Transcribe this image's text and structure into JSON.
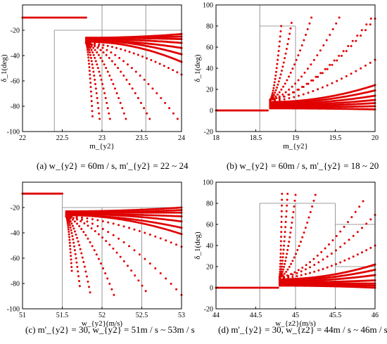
{
  "captions": [
    "(a)  w_{y2} = 60m / s, m'_{y2} = 22 ~ 24",
    "(b)  w_{y2} = 60m / s, m'_{y2} = 18 ~ 20",
    "(c)  m'_{y2} = 30, w_{y2} = 51m / s ~ 53m / s",
    "(d)  m'_{y2} = 30, w_{z2} = 44m / s ~ 46m / s"
  ],
  "colors": {
    "marker": "#e00000",
    "axis": "#000000",
    "grid": "#7f7f7f"
  },
  "chart_data": [
    {
      "type": "scatter",
      "xlabel": "m_{y2}",
      "ylabel": "δ_1(deg)",
      "xlim": [
        22,
        24
      ],
      "ylim": [
        -100,
        0
      ],
      "xticks": [
        22,
        22.5,
        23,
        23.5,
        24
      ],
      "yticks": [
        -100,
        -80,
        -60,
        -40,
        -20
      ],
      "grid": false,
      "guide_lines": [
        {
          "x": [
            22.4,
            24
          ],
          "y": [
            -20,
            -20
          ]
        },
        {
          "x": [
            22.4,
            22.4
          ],
          "y": [
            -100,
            -20
          ]
        },
        {
          "x": [
            23,
            23
          ],
          "y": [
            -100,
            0
          ]
        },
        {
          "x": [
            23.55,
            23.55
          ],
          "y": [
            -100,
            0
          ]
        }
      ],
      "flat_segment": {
        "x0": 22,
        "x1": 22.8,
        "y": -10
      },
      "jump_x": 22.8,
      "curves": [
        {
          "y_start": -26,
          "y_end": -23
        },
        {
          "y_start": -26,
          "y_end": -25
        },
        {
          "y_start": -26,
          "y_end": -27
        },
        {
          "y_start": -27,
          "y_end": -30
        },
        {
          "y_start": -28,
          "y_end": -34
        },
        {
          "y_start": -28,
          "y_end": -39
        },
        {
          "y_start": -29,
          "y_end": -45
        },
        {
          "y_start": -30,
          "y_end": -55,
          "x_end": 24
        },
        {
          "y_start": -30,
          "y_end": -90,
          "x_end": 23.95
        },
        {
          "y_start": -30,
          "y_end": -90,
          "x_end": 23.6
        },
        {
          "y_start": -30,
          "y_end": -90,
          "x_end": 23.3
        },
        {
          "y_start": -30,
          "y_end": -90,
          "x_end": 23.1
        },
        {
          "y_start": -30,
          "y_end": -90,
          "x_end": 22.97
        },
        {
          "y_start": -30,
          "y_end": -88,
          "x_end": 22.88
        }
      ]
    },
    {
      "type": "scatter",
      "xlabel": "m_{y2}",
      "ylabel": "δ_1(deg)",
      "xlim": [
        18,
        20
      ],
      "ylim": [
        -20,
        100
      ],
      "xticks": [
        18,
        18.5,
        19,
        19.5,
        20
      ],
      "yticks": [
        -20,
        0,
        20,
        40,
        60,
        80,
        100
      ],
      "grid": false,
      "guide_lines": [
        {
          "x": [
            18.55,
            18.55
          ],
          "y": [
            -20,
            100
          ]
        },
        {
          "x": [
            19,
            19
          ],
          "y": [
            -20,
            80
          ]
        },
        {
          "x": [
            18.55,
            19
          ],
          "y": [
            80,
            80
          ]
        }
      ],
      "flat_segment": {
        "x0": 18,
        "x1": 18.65,
        "y": 0
      },
      "jump_x": 18.68,
      "curves": [
        {
          "y_start": 2,
          "y_end": 1
        },
        {
          "y_start": 3,
          "y_end": 4
        },
        {
          "y_start": 4,
          "y_end": 7
        },
        {
          "y_start": 5,
          "y_end": 10
        },
        {
          "y_start": 6,
          "y_end": 14
        },
        {
          "y_start": 7,
          "y_end": 19
        },
        {
          "y_start": 8,
          "y_end": 24
        },
        {
          "y_start": 9,
          "y_end": 48,
          "x_end": 20
        },
        {
          "y_start": 10,
          "y_end": 87,
          "x_end": 20
        },
        {
          "y_start": 10,
          "y_end": 87,
          "x_end": 19.95
        },
        {
          "y_start": 10,
          "y_end": 88,
          "x_end": 19.55
        },
        {
          "y_start": 10,
          "y_end": 88,
          "x_end": 19.2
        },
        {
          "y_start": 10,
          "y_end": 83,
          "x_end": 18.95
        },
        {
          "y_start": 10,
          "y_end": 80,
          "x_end": 18.82
        }
      ]
    },
    {
      "type": "scatter",
      "xlabel": "w_{y2}(m/s)",
      "ylabel": "",
      "xlim": [
        51,
        53
      ],
      "ylim": [
        -100,
        0
      ],
      "xticks": [
        51,
        51.5,
        52,
        52.5,
        53
      ],
      "yticks": [
        -100,
        -80,
        -60,
        -40,
        -20
      ],
      "grid": false,
      "guide_lines": [
        {
          "x": [
            51.5,
            51.5
          ],
          "y": [
            -100,
            -10
          ]
        },
        {
          "x": [
            52,
            52
          ],
          "y": [
            -100,
            -20
          ]
        },
        {
          "x": [
            52.5,
            52.5
          ],
          "y": [
            -100,
            -20
          ]
        },
        {
          "x": [
            51.5,
            53
          ],
          "y": [
            -20,
            -20
          ]
        }
      ],
      "flat_segment": {
        "x0": 51,
        "x1": 51.5,
        "y": -9
      },
      "jump_x": 51.55,
      "curves": [
        {
          "y_start": -23,
          "y_end": -20
        },
        {
          "y_start": -24,
          "y_end": -22
        },
        {
          "y_start": -24,
          "y_end": -24
        },
        {
          "y_start": -25,
          "y_end": -27
        },
        {
          "y_start": -25,
          "y_end": -31
        },
        {
          "y_start": -26,
          "y_end": -36
        },
        {
          "y_start": -26,
          "y_end": -41
        },
        {
          "y_start": -27,
          "y_end": -51,
          "x_end": 53
        },
        {
          "y_start": -27,
          "y_end": -89,
          "x_end": 53
        },
        {
          "y_start": -27,
          "y_end": -86,
          "x_end": 52.55
        },
        {
          "y_start": -27,
          "y_end": -89,
          "x_end": 52.15
        },
        {
          "y_start": -27,
          "y_end": -87,
          "x_end": 51.85
        },
        {
          "y_start": -27,
          "y_end": -82,
          "x_end": 51.72
        },
        {
          "y_start": -27,
          "y_end": -70,
          "x_end": 51.62
        }
      ]
    },
    {
      "type": "scatter",
      "xlabel": "w_{z2}(m/s)",
      "ylabel": "δ_1(deg)",
      "xlim": [
        44,
        46
      ],
      "ylim": [
        -20,
        100
      ],
      "xticks": [
        44,
        44.5,
        45,
        45.5,
        46
      ],
      "yticks": [
        -20,
        0,
        20,
        40,
        60,
        80,
        100
      ],
      "grid": false,
      "guide_lines": [
        {
          "x": [
            44.55,
            44.55
          ],
          "y": [
            -20,
            80
          ]
        },
        {
          "x": [
            45,
            45
          ],
          "y": [
            -20,
            80
          ]
        },
        {
          "x": [
            44.55,
            45.5
          ],
          "y": [
            80,
            80
          ]
        },
        {
          "x": [
            45.5,
            45.5
          ],
          "y": [
            -20,
            80
          ]
        },
        {
          "x": [
            45.5,
            46
          ],
          "y": [
            60,
            60
          ]
        },
        {
          "x": [
            45.5,
            46
          ],
          "y": [
            20,
            20
          ]
        }
      ],
      "flat_segment": {
        "x0": 44,
        "x1": 44.78,
        "y": 0
      },
      "jump_x": 44.8,
      "curves": [
        {
          "y_start": 2,
          "y_end": 0
        },
        {
          "y_start": 3,
          "y_end": 2
        },
        {
          "y_start": 4,
          "y_end": 4
        },
        {
          "y_start": 5,
          "y_end": 7
        },
        {
          "y_start": 6,
          "y_end": 12
        },
        {
          "y_start": 7,
          "y_end": 17
        },
        {
          "y_start": 8,
          "y_end": 22
        },
        {
          "y_start": 9,
          "y_end": 40,
          "x_end": 46
        },
        {
          "y_start": 10,
          "y_end": 69,
          "x_end": 46
        },
        {
          "y_start": 10,
          "y_end": 82,
          "x_end": 45.85
        },
        {
          "y_start": 10,
          "y_end": 88,
          "x_end": 45.25
        },
        {
          "y_start": 10,
          "y_end": 88,
          "x_end": 45.0
        },
        {
          "y_start": 10,
          "y_end": 89,
          "x_end": 44.9
        },
        {
          "y_start": 10,
          "y_end": 89,
          "x_end": 44.83
        }
      ]
    }
  ]
}
